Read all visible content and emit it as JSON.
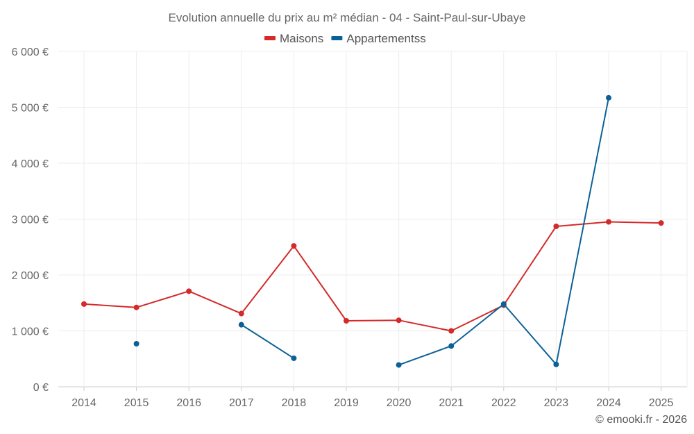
{
  "chart_data": {
    "type": "line",
    "title": "Evolution annuelle du prix au m² médian - 04 - Saint-Paul-sur-Ubaye",
    "categories": [
      "2014",
      "2015",
      "2016",
      "2017",
      "2018",
      "2019",
      "2020",
      "2021",
      "2022",
      "2023",
      "2024",
      "2025"
    ],
    "ylim": [
      0,
      6000
    ],
    "yticks": [
      0,
      1000,
      2000,
      3000,
      4000,
      5000,
      6000
    ],
    "ytick_labels": [
      "0 €",
      "1 000 €",
      "2 000 €",
      "3 000 €",
      "4 000 €",
      "5 000 €",
      "6 000 €"
    ],
    "grid": true,
    "legend_position": "top-center",
    "series": [
      {
        "name": "Maisons",
        "color": "#d42a2a",
        "values": [
          1480,
          1420,
          1710,
          1310,
          2520,
          1180,
          1190,
          1000,
          1460,
          2870,
          2950,
          2930
        ]
      },
      {
        "name": "Appartementss",
        "color": "#0b6197",
        "values": [
          null,
          770,
          null,
          1110,
          510,
          null,
          390,
          730,
          1480,
          400,
          5170,
          null
        ]
      }
    ]
  },
  "credit": "© emooki.fr - 2026"
}
